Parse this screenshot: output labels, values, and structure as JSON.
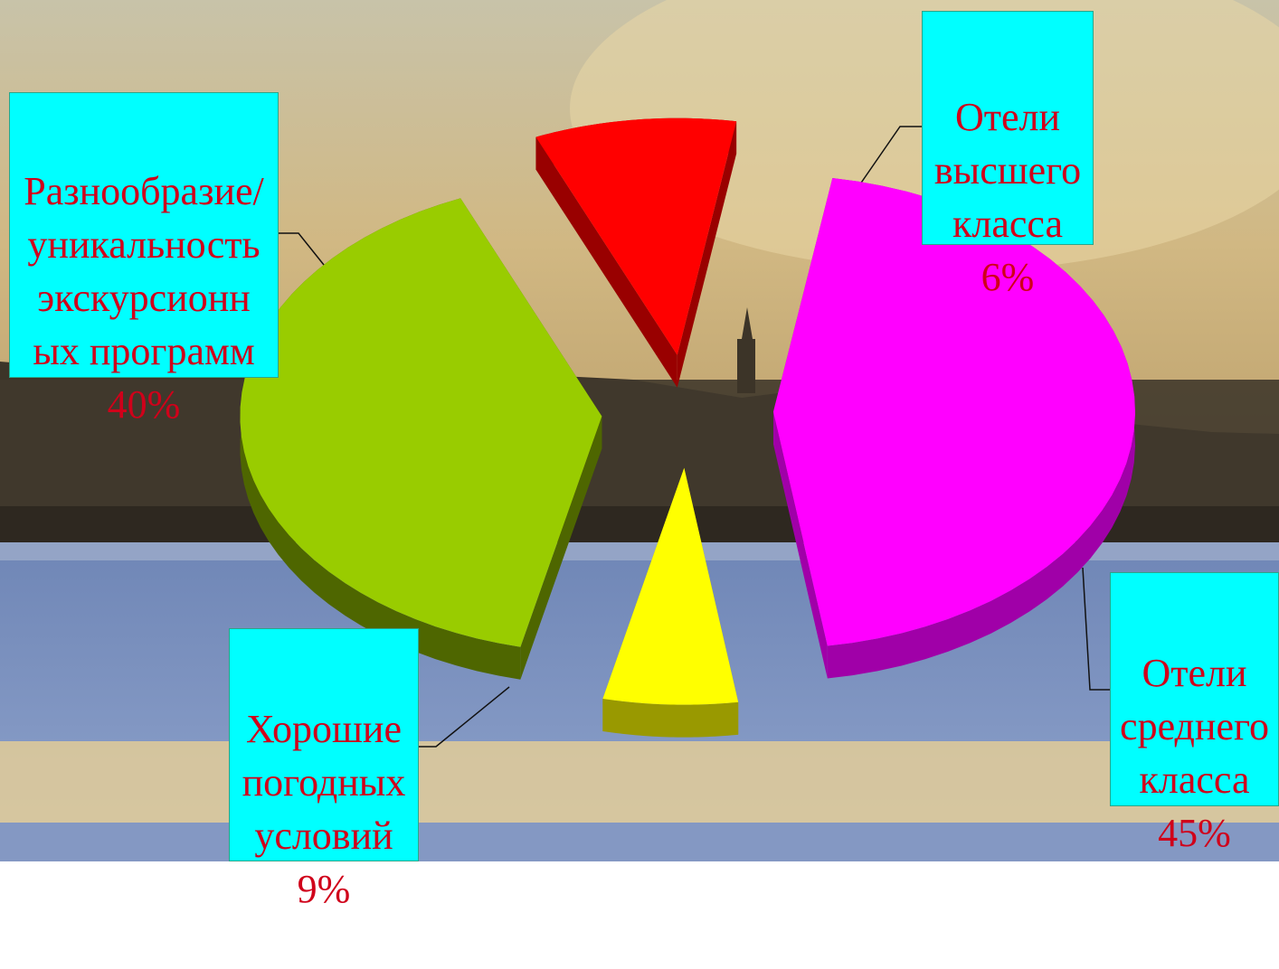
{
  "chart_data": {
    "type": "pie",
    "exploded": true,
    "style": "3d",
    "slices": [
      {
        "id": "diversity",
        "lines": [
          "Разнообразие/",
          "уникальность",
          "экскурсионн",
          "ых программ"
        ],
        "value_label": "40%",
        "value": 40,
        "color": "#99cc00",
        "side_color": "#4e6600"
      },
      {
        "id": "luxury",
        "lines": [
          "Отели",
          "высшего",
          "класса"
        ],
        "value_label": "6%",
        "value": 6,
        "color": "#ffff00",
        "side_color": "#999900"
      },
      {
        "id": "middle",
        "lines": [
          "Отели",
          "среднего",
          "класса"
        ],
        "value_label": "45%",
        "value": 45,
        "color": "#ff00ff",
        "side_color": "#a000a8"
      },
      {
        "id": "weather",
        "lines": [
          "Хорошие",
          "погодных",
          "условий"
        ],
        "value_label": "9%",
        "value": 9,
        "color": "#ff0000",
        "side_color": "#990000"
      }
    ]
  },
  "colors": {
    "label_background": "#00ffff",
    "label_text": "#d0001a",
    "sky_top": "#c9c3aa",
    "sky_bottom": "#c8a46a",
    "river": "#7f95c0",
    "skyline": "#3a3226"
  }
}
